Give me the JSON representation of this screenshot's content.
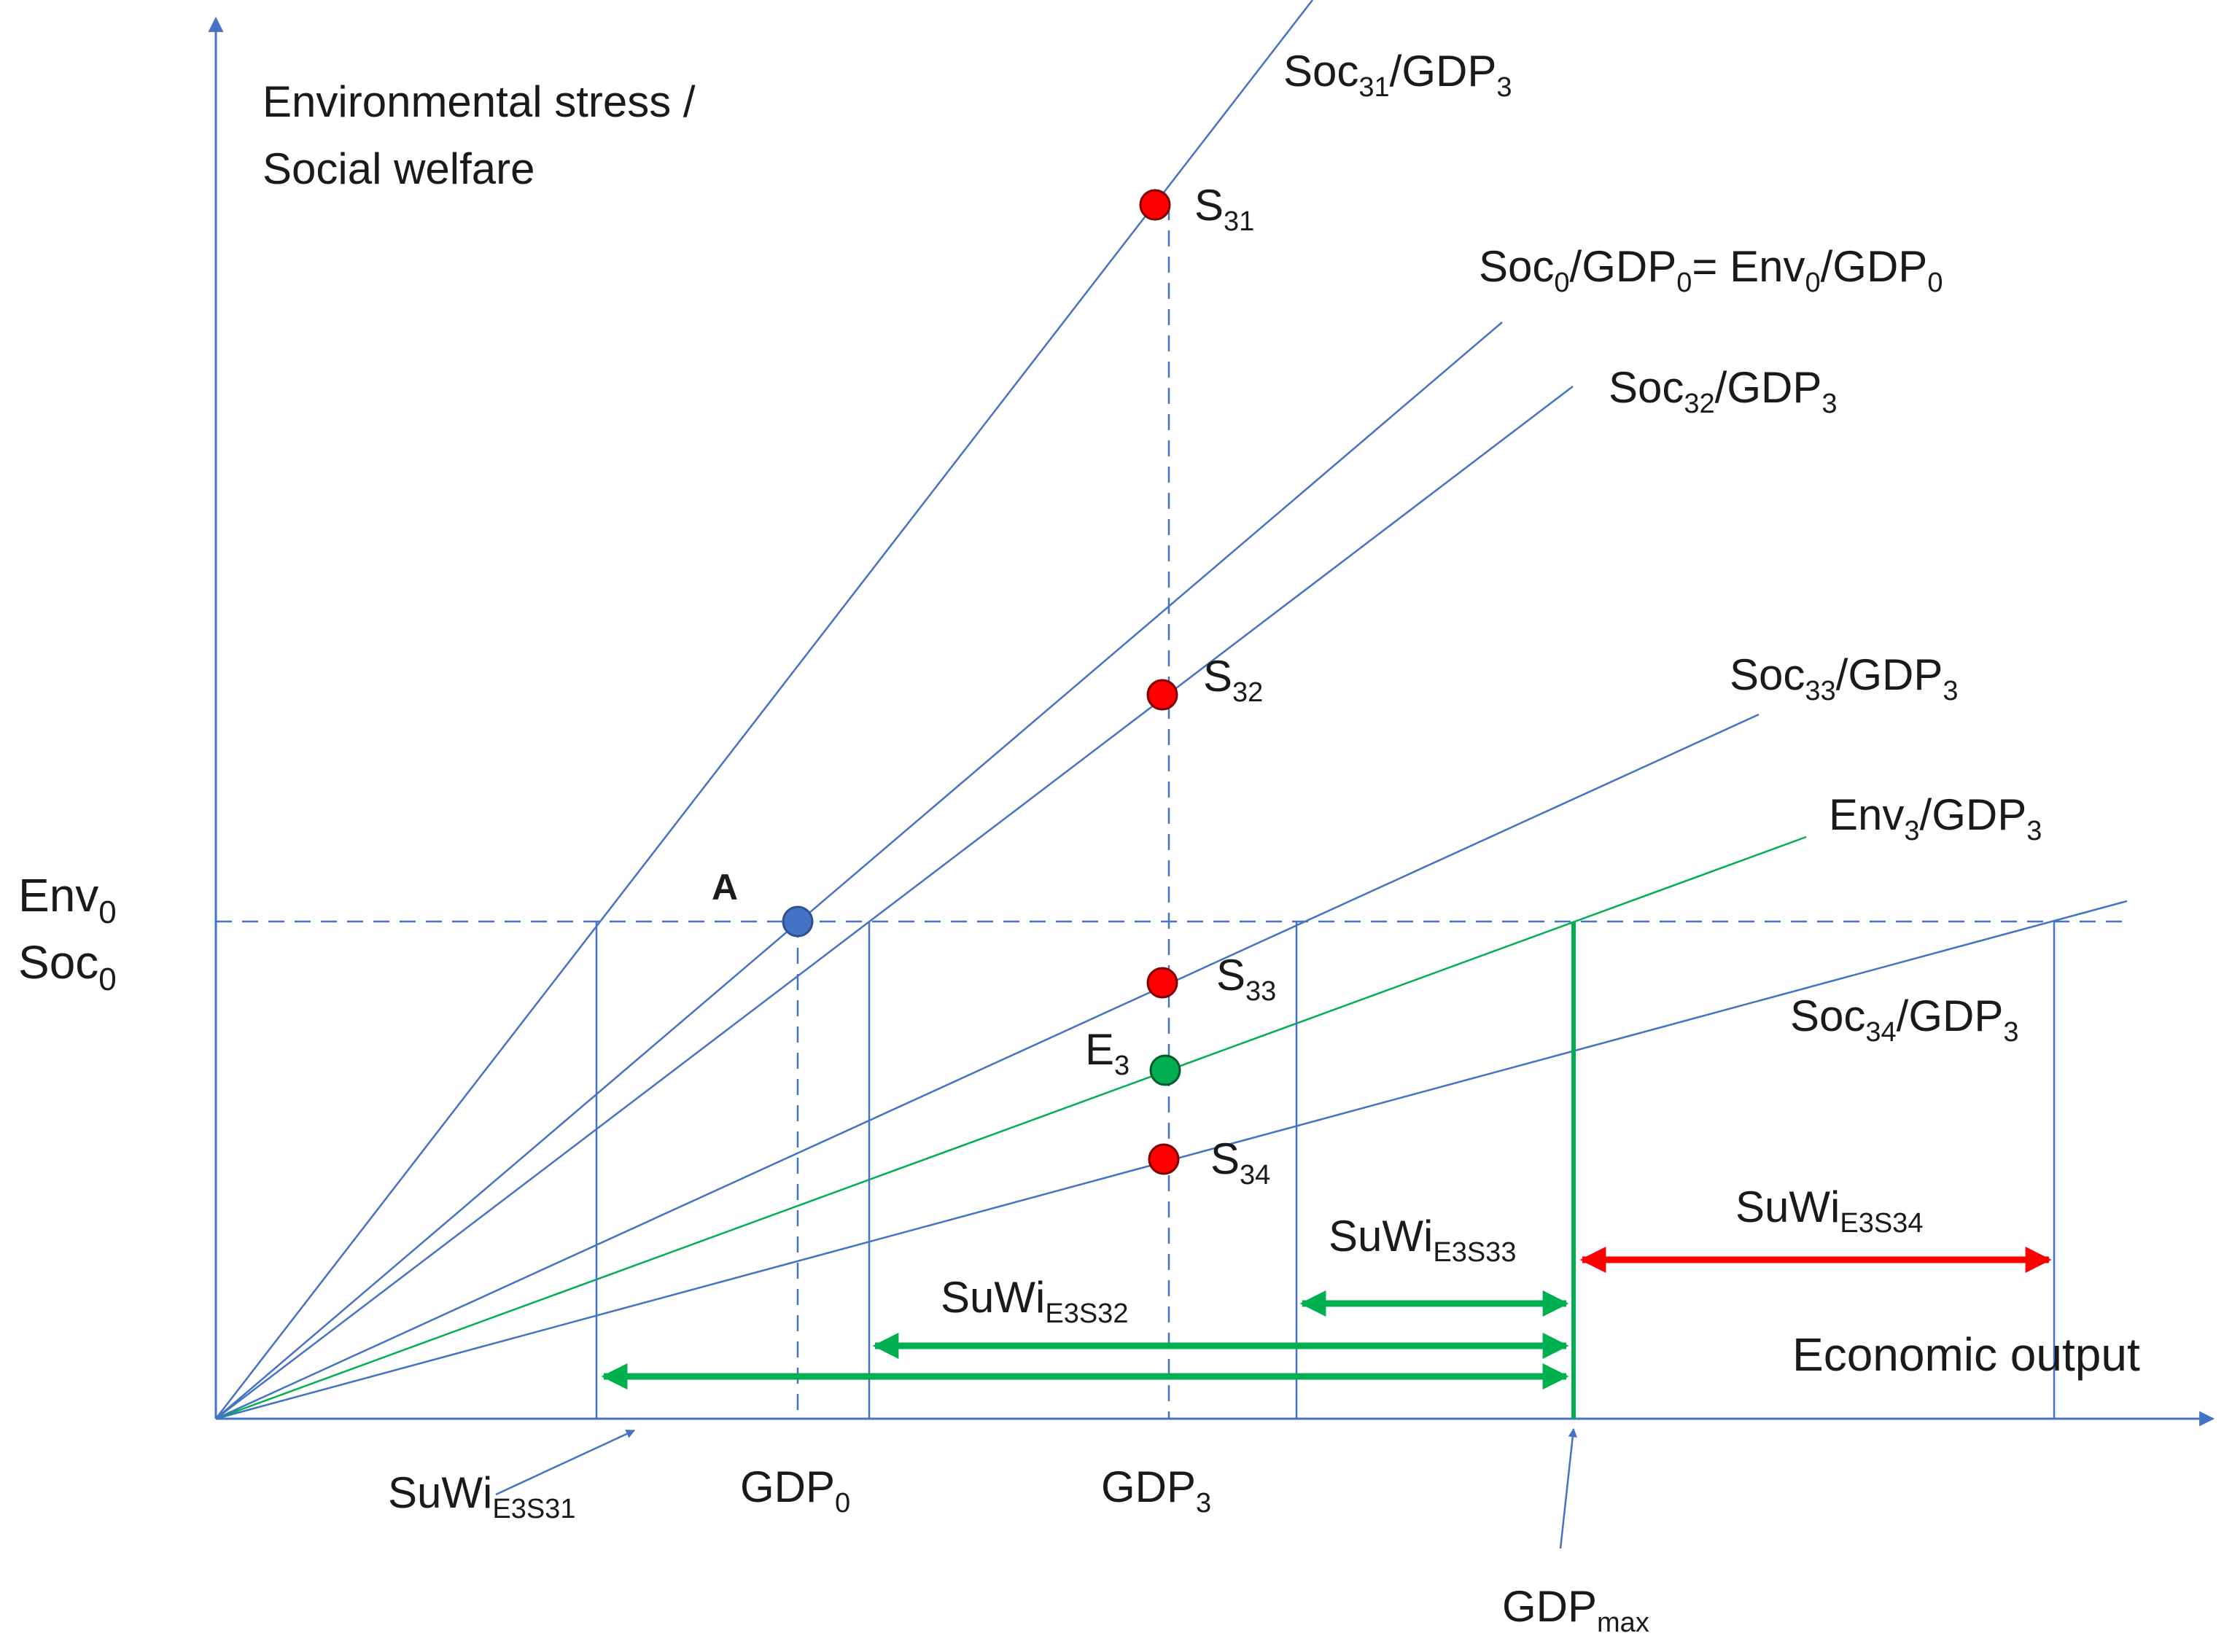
{
  "axes": {
    "y_title_line1": "Environmental stress /",
    "y_title_line2": "Social welfare",
    "x_title": "Economic output",
    "y_tick_env": {
      "base": "Env",
      "sub": "0"
    },
    "y_tick_soc": {
      "base": "Soc",
      "sub": "0"
    }
  },
  "rays": [
    {
      "id": "soc31",
      "color": "#4472c4",
      "parts": [
        [
          "Soc",
          ""
        ],
        [
          "31",
          "sub"
        ],
        [
          "/GDP",
          ""
        ],
        [
          "3",
          "sub"
        ]
      ]
    },
    {
      "id": "soc0",
      "color": "#4472c4",
      "parts": [
        [
          "Soc",
          ""
        ],
        [
          "0",
          "sub"
        ],
        [
          "/GDP",
          ""
        ],
        [
          "0",
          "sub"
        ],
        [
          "= Env",
          ""
        ],
        [
          "0",
          "sub"
        ],
        [
          "/GDP",
          ""
        ],
        [
          "0",
          "sub"
        ]
      ]
    },
    {
      "id": "soc32",
      "color": "#4472c4",
      "parts": [
        [
          "Soc",
          ""
        ],
        [
          "32",
          "sub"
        ],
        [
          "/GDP",
          ""
        ],
        [
          "3",
          "sub"
        ]
      ]
    },
    {
      "id": "soc33",
      "color": "#4472c4",
      "parts": [
        [
          "Soc",
          ""
        ],
        [
          "33",
          "sub"
        ],
        [
          "/GDP",
          ""
        ],
        [
          "3",
          "sub"
        ]
      ]
    },
    {
      "id": "env3",
      "color": "#00b050",
      "parts": [
        [
          "Env",
          ""
        ],
        [
          "3",
          "sub"
        ],
        [
          "/GDP",
          ""
        ],
        [
          "3",
          "sub"
        ]
      ]
    },
    {
      "id": "soc34",
      "color": "#4472c4",
      "parts": [
        [
          "Soc",
          ""
        ],
        [
          "34",
          "sub"
        ],
        [
          "/GDP",
          ""
        ],
        [
          "3",
          "sub"
        ]
      ]
    }
  ],
  "points": [
    {
      "id": "A",
      "label": "A",
      "color": "#4472c4",
      "bold": true
    },
    {
      "id": "S31",
      "color": "#ff0000",
      "parts": [
        [
          "S",
          ""
        ],
        [
          "31",
          "sub"
        ]
      ]
    },
    {
      "id": "S32",
      "color": "#ff0000",
      "parts": [
        [
          "S",
          ""
        ],
        [
          "32",
          "sub"
        ]
      ]
    },
    {
      "id": "S33",
      "color": "#ff0000",
      "parts": [
        [
          "S",
          ""
        ],
        [
          "33",
          "sub"
        ]
      ]
    },
    {
      "id": "E3",
      "color": "#00b050",
      "parts": [
        [
          "E",
          ""
        ],
        [
          "3",
          "sub"
        ]
      ]
    },
    {
      "id": "S34",
      "color": "#ff0000",
      "parts": [
        [
          "S",
          ""
        ],
        [
          "34",
          "sub"
        ]
      ]
    }
  ],
  "x_markers": [
    {
      "id": "gdp0",
      "parts": [
        [
          "GDP",
          ""
        ],
        [
          "0",
          "sub"
        ]
      ]
    },
    {
      "id": "gdp3",
      "parts": [
        [
          "GDP",
          ""
        ],
        [
          "3",
          "sub"
        ]
      ]
    },
    {
      "id": "gdpmax",
      "parts": [
        [
          "GDP",
          ""
        ],
        [
          "max",
          "sub"
        ]
      ]
    }
  ],
  "suwi": [
    {
      "id": "E3S31",
      "color": "#00b050",
      "parts": [
        [
          "SuWi",
          ""
        ],
        [
          "E3S31",
          "sub"
        ]
      ]
    },
    {
      "id": "E3S32",
      "color": "#00b050",
      "parts": [
        [
          "SuWi",
          ""
        ],
        [
          "E3S32",
          "sub"
        ]
      ]
    },
    {
      "id": "E3S33",
      "color": "#00b050",
      "parts": [
        [
          "SuWi",
          ""
        ],
        [
          "E3S33",
          "sub"
        ]
      ]
    },
    {
      "id": "E3S34",
      "color": "#ff0000",
      "parts": [
        [
          "SuWi",
          ""
        ],
        [
          "E3S34",
          "sub"
        ]
      ]
    }
  ],
  "colors": {
    "axis": "#4472c4",
    "soc_line": "#4472c4",
    "env_line": "#00b050",
    "point_soc": "#ff0000",
    "point_env": "#00b050",
    "point_A": "#4472c4",
    "suwi_positive": "#00b050",
    "suwi_negative": "#ff0000"
  }
}
